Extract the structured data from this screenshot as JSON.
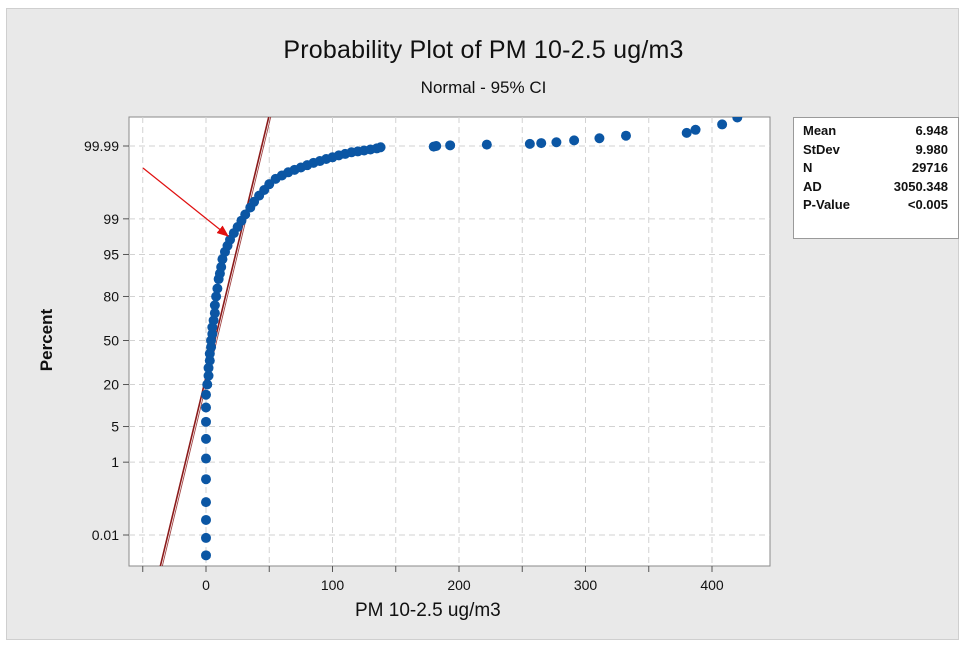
{
  "chart_data": {
    "type": "scatter",
    "title": "Probability Plot of PM 10-2.5 ug/m3",
    "subtitle": "Normal - 95% CI",
    "xlabel": "PM 10-2.5 ug/m3",
    "ylabel": "Percent",
    "xlim": [
      -60,
      445
    ],
    "x_ticks": [
      0,
      100,
      200,
      300,
      400
    ],
    "y_scale": "normal-probability",
    "y_ticks": [
      "0.01",
      "1",
      "5",
      "20",
      "50",
      "80",
      "95",
      "99",
      "99.99"
    ],
    "grid": true,
    "legend": "stats-box top-right",
    "colors": {
      "points": "#0b56a4",
      "fit_line": "#8b1a1a",
      "annotation_arrow": "#e01010",
      "background": "#e9e9e9",
      "plot_area": "#ffffff"
    },
    "fit_line": {
      "mean": 6.948,
      "stdev": 9.98
    },
    "series": [
      {
        "points": [
          [
            0,
            0.002
          ],
          [
            0,
            0.008
          ],
          [
            0,
            0.03
          ],
          [
            0,
            0.1
          ],
          [
            0,
            0.4
          ],
          [
            0,
            1.2
          ],
          [
            0,
            3
          ],
          [
            0,
            6
          ],
          [
            0,
            10
          ],
          [
            0,
            15
          ],
          [
            1,
            20
          ],
          [
            2,
            25
          ],
          [
            2,
            30
          ],
          [
            3,
            35
          ],
          [
            3,
            40
          ],
          [
            4,
            45
          ],
          [
            4,
            50
          ],
          [
            5,
            55
          ],
          [
            5,
            60
          ],
          [
            6,
            65
          ],
          [
            7,
            70
          ],
          [
            7,
            75
          ],
          [
            8,
            80
          ],
          [
            9,
            84
          ],
          [
            10,
            88
          ],
          [
            11,
            90
          ],
          [
            12,
            92
          ],
          [
            13,
            94
          ],
          [
            15,
            95.5
          ],
          [
            17,
            96.5
          ],
          [
            19,
            97.3
          ],
          [
            22,
            98
          ],
          [
            25,
            98.5
          ],
          [
            28,
            98.9
          ],
          [
            31,
            99.2
          ],
          [
            35,
            99.45
          ],
          [
            38,
            99.6
          ],
          [
            42,
            99.72
          ],
          [
            46,
            99.8
          ],
          [
            50,
            99.86
          ],
          [
            55,
            99.9
          ],
          [
            60,
            99.92
          ],
          [
            65,
            99.935
          ],
          [
            70,
            99.945
          ],
          [
            75,
            99.953
          ],
          [
            80,
            99.96
          ],
          [
            85,
            99.966
          ],
          [
            90,
            99.97
          ],
          [
            95,
            99.974
          ],
          [
            100,
            99.977
          ],
          [
            105,
            99.98
          ],
          [
            110,
            99.982
          ],
          [
            115,
            99.984
          ],
          [
            120,
            99.985
          ],
          [
            125,
            99.986
          ],
          [
            130,
            99.987
          ],
          [
            135,
            99.988
          ],
          [
            138,
            99.989
          ],
          [
            180,
            99.9895
          ],
          [
            182,
            99.99
          ],
          [
            193,
            99.9905
          ],
          [
            222,
            99.991
          ],
          [
            256,
            99.9915
          ],
          [
            265,
            99.992
          ],
          [
            277,
            99.9925
          ],
          [
            291,
            99.9935
          ],
          [
            311,
            99.9945
          ],
          [
            332,
            99.9955
          ],
          [
            380,
            99.9964
          ],
          [
            387,
            99.9972
          ],
          [
            408,
            99.9982
          ],
          [
            420,
            99.999
          ]
        ]
      }
    ],
    "annotation": "red arrow pointing at curve bend"
  },
  "stats": [
    {
      "label": "Mean",
      "value": "6.948"
    },
    {
      "label": "StDev",
      "value": "9.980"
    },
    {
      "label": "N",
      "value": "29716"
    },
    {
      "label": "AD",
      "value": "3050.348"
    },
    {
      "label": "P-Value",
      "value": "<0.005"
    }
  ]
}
